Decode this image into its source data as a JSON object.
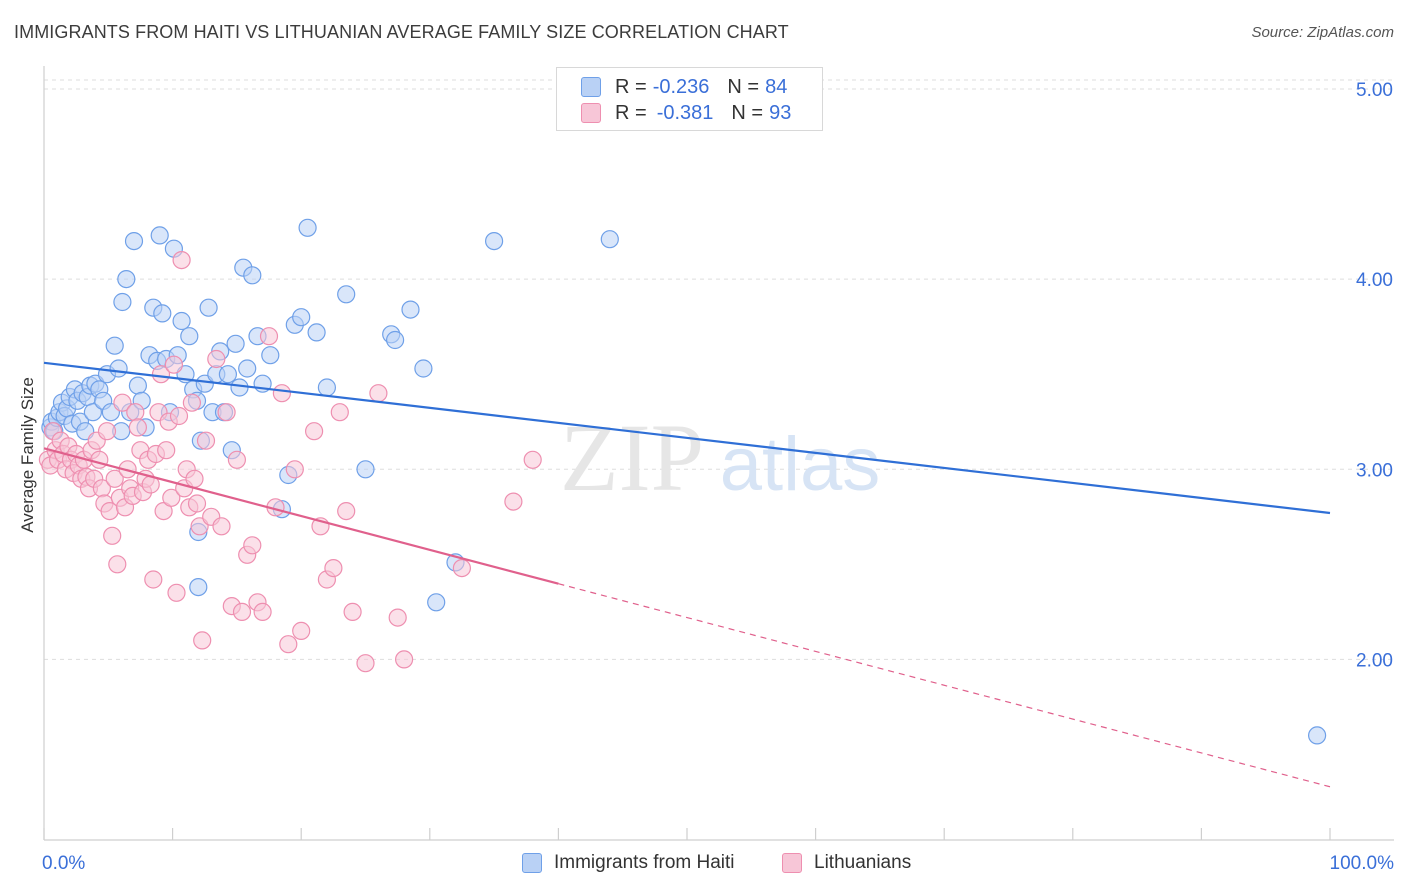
{
  "title": "IMMIGRANTS FROM HAITI VS LITHUANIAN AVERAGE FAMILY SIZE CORRELATION CHART",
  "source": "Source: ZipAtlas.com",
  "watermark": {
    "zip": "ZIP",
    "atlas": "atlas"
  },
  "legend": {
    "rows": [
      {
        "r_label": "R =",
        "r_value": "-0.236",
        "n_label": "N =",
        "n_value": "84"
      },
      {
        "r_label": "R =",
        "r_value": "-0.381",
        "n_label": "N =",
        "n_value": "93"
      }
    ]
  },
  "chart_data": {
    "type": "scatter",
    "title": "IMMIGRANTS FROM HAITI VS LITHUANIAN AVERAGE FAMILY SIZE CORRELATION CHART",
    "xlabel": "",
    "ylabel": "Average Family Size",
    "xlim": [
      0,
      100
    ],
    "ylim": [
      1.05,
      5.1
    ],
    "x_tick_labels": [
      "0.0%",
      "100.0%"
    ],
    "y_ticks": [
      2.0,
      3.0,
      4.0,
      5.0
    ],
    "y_tick_labels": [
      "2.00",
      "3.00",
      "4.00",
      "5.00"
    ],
    "grid": true,
    "legend_position": "bottom",
    "series": [
      {
        "name": "Immigrants from Haiti",
        "color": "#6fa0e8",
        "fill": "#b9d1f5",
        "trend": {
          "x": [
            0,
            100
          ],
          "y": [
            3.56,
            2.77
          ],
          "dashed_from": null
        },
        "points": [
          [
            0.5,
            3.22
          ],
          [
            0.6,
            3.25
          ],
          [
            0.8,
            3.2
          ],
          [
            1.0,
            3.27
          ],
          [
            1.2,
            3.3
          ],
          [
            1.4,
            3.35
          ],
          [
            1.6,
            3.28
          ],
          [
            1.8,
            3.32
          ],
          [
            2.0,
            3.38
          ],
          [
            2.2,
            3.24
          ],
          [
            2.4,
            3.42
          ],
          [
            2.6,
            3.36
          ],
          [
            2.8,
            3.25
          ],
          [
            3.0,
            3.4
          ],
          [
            3.2,
            3.2
          ],
          [
            3.4,
            3.38
          ],
          [
            3.6,
            3.44
          ],
          [
            3.8,
            3.3
          ],
          [
            4.0,
            3.45
          ],
          [
            4.3,
            3.42
          ],
          [
            4.6,
            3.36
          ],
          [
            4.9,
            3.5
          ],
          [
            5.2,
            3.3
          ],
          [
            5.5,
            3.65
          ],
          [
            5.8,
            3.53
          ],
          [
            6.1,
            3.88
          ],
          [
            6.4,
            4.0
          ],
          [
            6.7,
            3.3
          ],
          [
            7.0,
            4.2
          ],
          [
            7.3,
            3.44
          ],
          [
            7.6,
            3.36
          ],
          [
            7.9,
            3.22
          ],
          [
            8.2,
            3.6
          ],
          [
            8.5,
            3.85
          ],
          [
            8.8,
            3.57
          ],
          [
            9.0,
            4.23
          ],
          [
            9.2,
            3.82
          ],
          [
            9.5,
            3.58
          ],
          [
            9.8,
            3.3
          ],
          [
            10.1,
            4.16
          ],
          [
            10.4,
            3.6
          ],
          [
            10.7,
            3.78
          ],
          [
            11.0,
            3.5
          ],
          [
            11.3,
            3.7
          ],
          [
            11.6,
            3.42
          ],
          [
            11.9,
            3.36
          ],
          [
            12.2,
            3.15
          ],
          [
            12.5,
            3.45
          ],
          [
            12.8,
            3.85
          ],
          [
            13.1,
            3.3
          ],
          [
            13.4,
            3.5
          ],
          [
            13.7,
            3.62
          ],
          [
            14.0,
            3.3
          ],
          [
            14.3,
            3.5
          ],
          [
            14.6,
            3.1
          ],
          [
            14.9,
            3.66
          ],
          [
            15.2,
            3.43
          ],
          [
            15.5,
            4.06
          ],
          [
            15.8,
            3.53
          ],
          [
            16.2,
            4.02
          ],
          [
            16.6,
            3.7
          ],
          [
            17.0,
            3.45
          ],
          [
            17.6,
            3.6
          ],
          [
            18.5,
            2.79
          ],
          [
            19.0,
            2.97
          ],
          [
            19.5,
            3.76
          ],
          [
            20.0,
            3.8
          ],
          [
            20.5,
            4.27
          ],
          [
            21.2,
            3.72
          ],
          [
            22.0,
            3.43
          ],
          [
            23.5,
            3.92
          ],
          [
            27.0,
            3.71
          ],
          [
            27.3,
            3.68
          ],
          [
            28.5,
            3.84
          ],
          [
            29.5,
            3.53
          ],
          [
            30.5,
            2.3
          ],
          [
            32.0,
            2.51
          ],
          [
            35.0,
            4.2
          ],
          [
            44.0,
            4.21
          ],
          [
            12.0,
            2.38
          ],
          [
            12.0,
            2.67
          ],
          [
            99.0,
            1.6
          ],
          [
            25.0,
            3.0
          ],
          [
            6.0,
            3.2
          ]
        ]
      },
      {
        "name": "Lithuanians",
        "color": "#ee8fb0",
        "fill": "#f7c6d7",
        "trend": {
          "x": [
            0,
            100
          ],
          "y": [
            3.11,
            1.33
          ],
          "dashed_from": 40
        },
        "points": [
          [
            0.3,
            3.05
          ],
          [
            0.5,
            3.02
          ],
          [
            0.7,
            3.2
          ],
          [
            0.9,
            3.1
          ],
          [
            1.1,
            3.05
          ],
          [
            1.3,
            3.15
          ],
          [
            1.5,
            3.08
          ],
          [
            1.7,
            3.0
          ],
          [
            1.9,
            3.12
          ],
          [
            2.1,
            3.05
          ],
          [
            2.3,
            2.98
          ],
          [
            2.5,
            3.08
          ],
          [
            2.7,
            3.02
          ],
          [
            2.9,
            2.95
          ],
          [
            3.1,
            3.05
          ],
          [
            3.3,
            2.96
          ],
          [
            3.5,
            2.9
          ],
          [
            3.7,
            3.1
          ],
          [
            3.9,
            2.95
          ],
          [
            4.1,
            3.15
          ],
          [
            4.3,
            3.05
          ],
          [
            4.5,
            2.9
          ],
          [
            4.7,
            2.82
          ],
          [
            4.9,
            3.2
          ],
          [
            5.1,
            2.78
          ],
          [
            5.3,
            2.65
          ],
          [
            5.5,
            2.95
          ],
          [
            5.7,
            2.5
          ],
          [
            5.9,
            2.85
          ],
          [
            6.1,
            3.35
          ],
          [
            6.3,
            2.8
          ],
          [
            6.5,
            3.0
          ],
          [
            6.7,
            2.9
          ],
          [
            6.9,
            2.86
          ],
          [
            7.1,
            3.3
          ],
          [
            7.3,
            3.22
          ],
          [
            7.5,
            3.1
          ],
          [
            7.7,
            2.88
          ],
          [
            7.9,
            2.95
          ],
          [
            8.1,
            3.05
          ],
          [
            8.3,
            2.92
          ],
          [
            8.5,
            2.42
          ],
          [
            8.7,
            3.08
          ],
          [
            8.9,
            3.3
          ],
          [
            9.1,
            3.5
          ],
          [
            9.3,
            2.78
          ],
          [
            9.5,
            3.1
          ],
          [
            9.7,
            3.25
          ],
          [
            9.9,
            2.85
          ],
          [
            10.1,
            3.55
          ],
          [
            10.3,
            2.35
          ],
          [
            10.5,
            3.28
          ],
          [
            10.7,
            4.1
          ],
          [
            10.9,
            2.9
          ],
          [
            11.1,
            3.0
          ],
          [
            11.3,
            2.8
          ],
          [
            11.5,
            3.35
          ],
          [
            11.7,
            2.95
          ],
          [
            11.9,
            2.82
          ],
          [
            12.1,
            2.7
          ],
          [
            12.3,
            2.1
          ],
          [
            12.6,
            3.15
          ],
          [
            13.0,
            2.75
          ],
          [
            13.4,
            3.58
          ],
          [
            13.8,
            2.7
          ],
          [
            14.2,
            3.3
          ],
          [
            14.6,
            2.28
          ],
          [
            15.0,
            3.05
          ],
          [
            15.4,
            2.25
          ],
          [
            15.8,
            2.55
          ],
          [
            16.2,
            2.6
          ],
          [
            16.6,
            2.3
          ],
          [
            17.0,
            2.25
          ],
          [
            17.5,
            3.7
          ],
          [
            18.0,
            2.8
          ],
          [
            18.5,
            3.4
          ],
          [
            19.0,
            2.08
          ],
          [
            19.5,
            3.0
          ],
          [
            20.0,
            2.15
          ],
          [
            21.0,
            3.2
          ],
          [
            21.5,
            2.7
          ],
          [
            22.0,
            2.42
          ],
          [
            23.0,
            3.3
          ],
          [
            23.5,
            2.78
          ],
          [
            24.0,
            2.25
          ],
          [
            25.0,
            1.98
          ],
          [
            26.0,
            3.4
          ],
          [
            27.5,
            2.22
          ],
          [
            28.0,
            2.0
          ],
          [
            32.5,
            2.48
          ],
          [
            36.5,
            2.83
          ],
          [
            38.0,
            3.05
          ],
          [
            22.5,
            2.48
          ]
        ]
      }
    ]
  }
}
